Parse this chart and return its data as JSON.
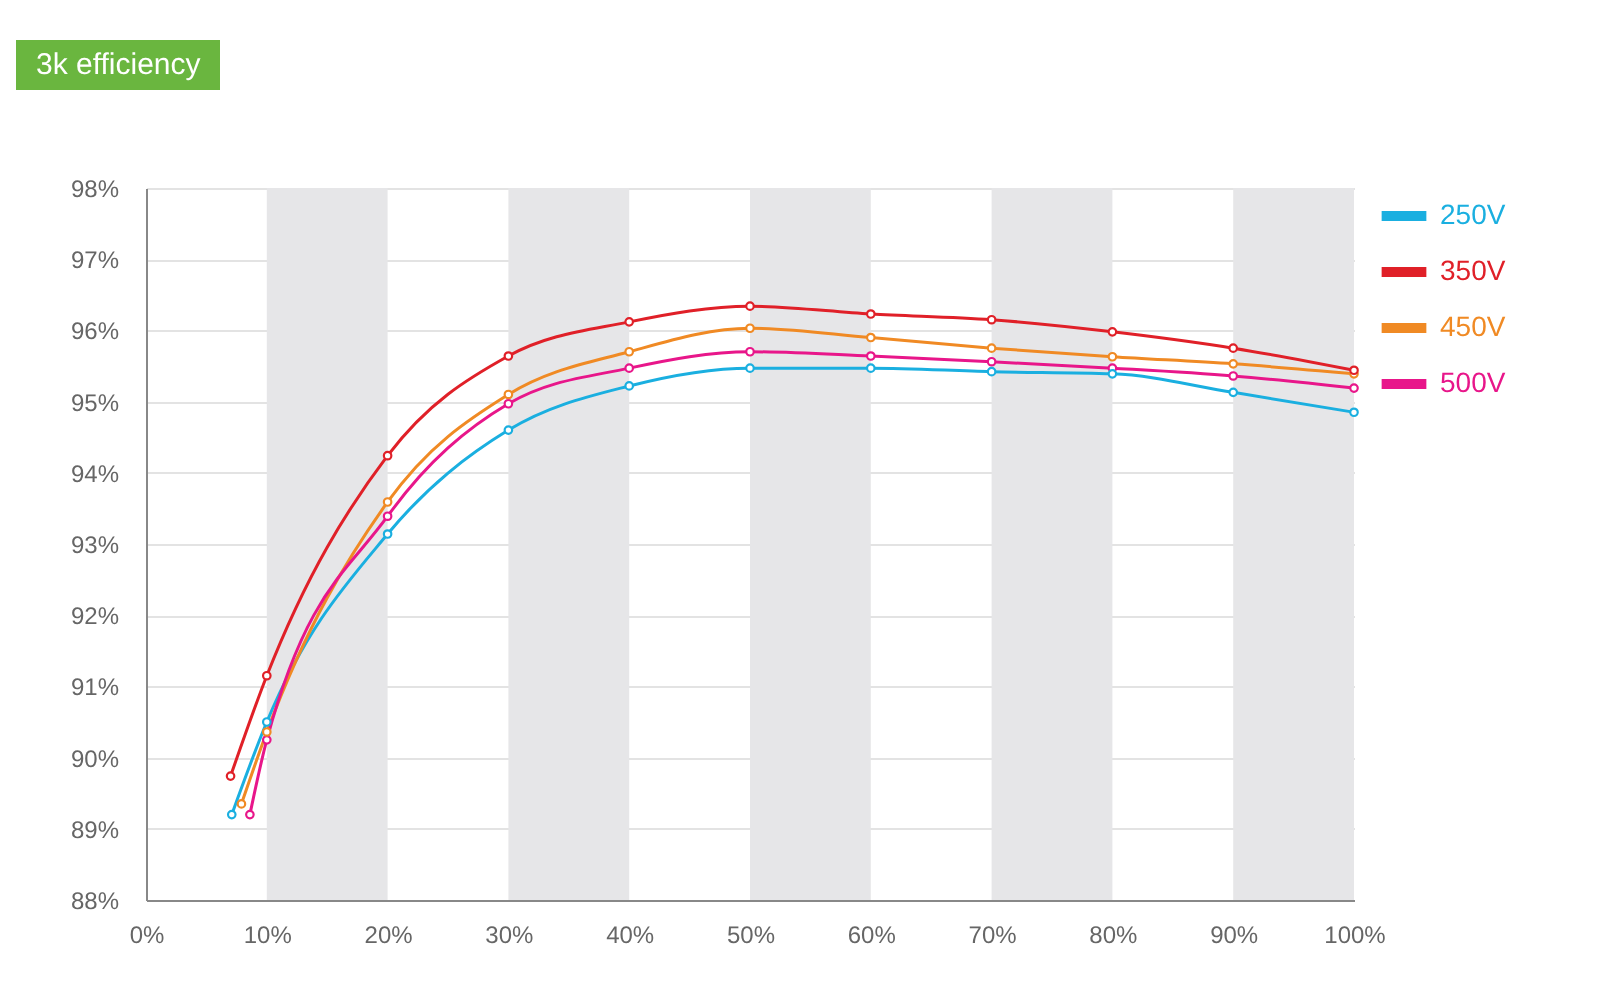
{
  "chart_data": {
    "type": "line",
    "title": "3k efficiency",
    "xlim": [
      0,
      100
    ],
    "ylim": [
      88,
      98
    ],
    "xticks": [
      {
        "value": 0,
        "label": "0%"
      },
      {
        "value": 10,
        "label": "10%"
      },
      {
        "value": 20,
        "label": "20%"
      },
      {
        "value": 30,
        "label": "30%"
      },
      {
        "value": 40,
        "label": "40%"
      },
      {
        "value": 50,
        "label": "50%"
      },
      {
        "value": 60,
        "label": "60%"
      },
      {
        "value": 70,
        "label": "70%"
      },
      {
        "value": 80,
        "label": "80%"
      },
      {
        "value": 90,
        "label": "90%"
      },
      {
        "value": 100,
        "label": "100%"
      }
    ],
    "yticks": [
      {
        "value": 88,
        "label": "88%"
      },
      {
        "value": 89,
        "label": "89%"
      },
      {
        "value": 90,
        "label": "90%"
      },
      {
        "value": 91,
        "label": "91%"
      },
      {
        "value": 92,
        "label": "92%"
      },
      {
        "value": 93,
        "label": "93%"
      },
      {
        "value": 94,
        "label": "94%"
      },
      {
        "value": 95,
        "label": "95%"
      },
      {
        "value": 96,
        "label": "96%"
      },
      {
        "value": 97,
        "label": "97%"
      },
      {
        "value": 98,
        "label": "98%"
      }
    ],
    "grid": "y",
    "legend": "top right",
    "marker": "circle",
    "line_style": "solid",
    "bands": [
      {
        "axis": "x",
        "from": 10,
        "to": 20,
        "color": "#e6e6e8"
      },
      {
        "axis": "x",
        "from": 30,
        "to": 40,
        "color": "#e6e6e8"
      },
      {
        "axis": "x",
        "from": 50,
        "to": 60,
        "color": "#e6e6e8"
      },
      {
        "axis": "x",
        "from": 70,
        "to": 80,
        "color": "#e6e6e8"
      },
      {
        "axis": "x",
        "from": 90,
        "to": 100,
        "color": "#e6e6e8"
      }
    ],
    "series": [
      {
        "name": "250V",
        "color": "#1aafe0",
        "x": [
          7.1,
          10,
          20,
          30,
          40,
          50,
          60,
          70,
          80,
          90,
          100
        ],
        "values": [
          89.2,
          90.5,
          93.14,
          94.6,
          95.22,
          95.47,
          95.47,
          95.42,
          95.39,
          95.13,
          94.85
        ]
      },
      {
        "name": "350V",
        "color": "#e02028",
        "x": [
          7,
          10,
          20,
          30,
          40,
          50,
          60,
          70,
          80,
          90,
          100
        ],
        "values": [
          89.74,
          91.15,
          94.24,
          95.64,
          96.12,
          96.34,
          96.23,
          96.15,
          95.98,
          95.75,
          95.44
        ]
      },
      {
        "name": "450V",
        "color": "#f08a24",
        "x": [
          7.9,
          10,
          20,
          30,
          40,
          50,
          60,
          70,
          80,
          90,
          100
        ],
        "values": [
          89.35,
          90.36,
          93.59,
          95.1,
          95.7,
          96.03,
          95.9,
          95.75,
          95.63,
          95.53,
          95.39
        ]
      },
      {
        "name": "500V",
        "color": "#e8168a",
        "x": [
          8.6,
          10,
          20,
          30,
          40,
          50,
          60,
          70,
          80,
          90,
          100
        ],
        "values": [
          89.2,
          90.25,
          93.39,
          94.97,
          95.47,
          95.7,
          95.64,
          95.56,
          95.47,
          95.36,
          95.19
        ]
      }
    ]
  }
}
